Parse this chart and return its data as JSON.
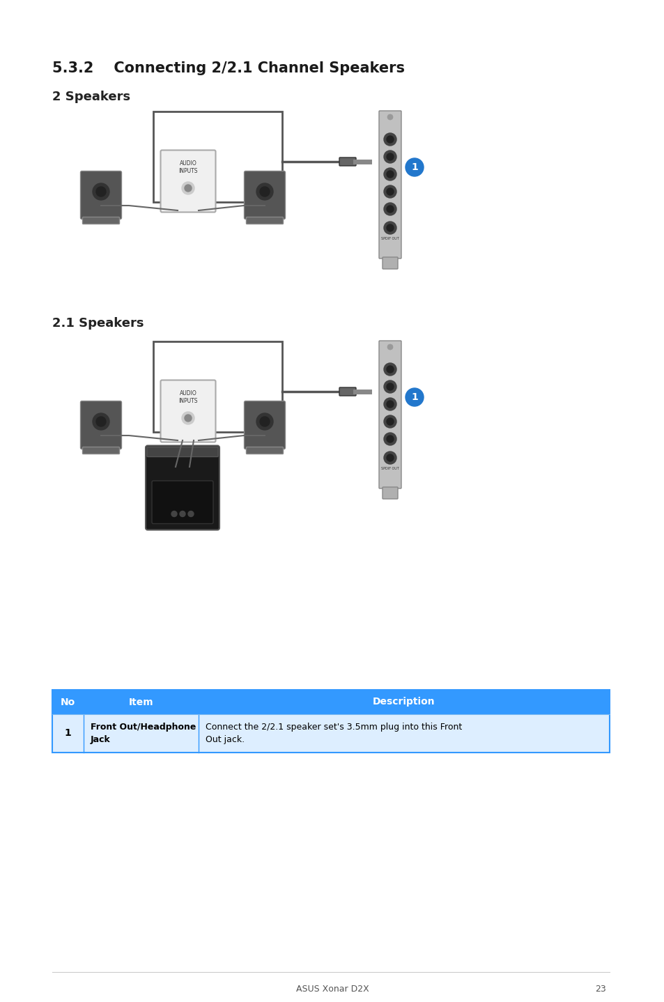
{
  "title": "5.3.2    Connecting 2/2.1 Channel Speakers",
  "section1_label": "2 Speakers",
  "section2_label": "2.1 Speakers",
  "table_header": [
    "No",
    "Item",
    "Description"
  ],
  "table_row1_no": "1",
  "table_row1_item": "Front Out/Headphone\nJack",
  "table_row1_desc": "Connect the 2/2.1 speaker set's 3.5mm plug into this Front\nOut jack.",
  "footer_text": "ASUS Xonar D2X",
  "footer_page": "23",
  "bg_color": "#ffffff",
  "header_bg": "#3399ff",
  "header_text_color": "#ffffff",
  "row1_bg": "#ddeeff",
  "row1_text_color": "#000000",
  "table_border": "#3399ff",
  "title_color": "#1a1a1a",
  "body_text_color": "#222222",
  "badge_color": "#2277cc",
  "badge_text": "1"
}
